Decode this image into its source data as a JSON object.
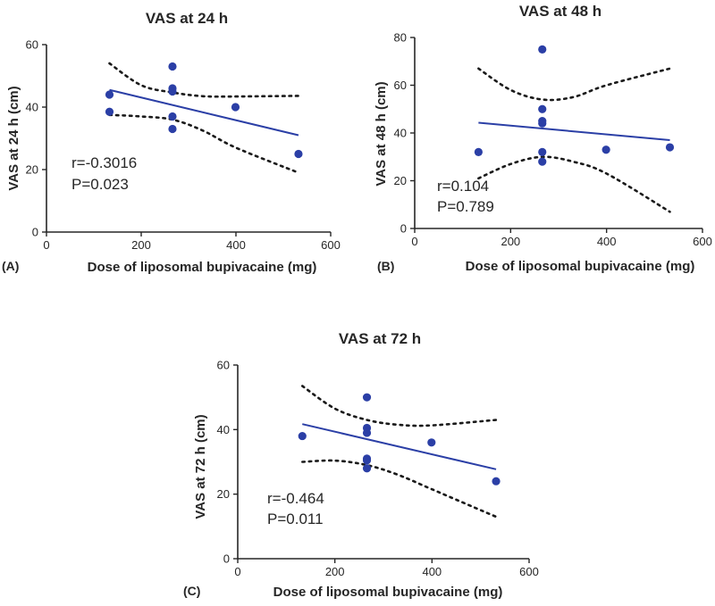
{
  "colors": {
    "point": "#2b3fa6",
    "fit_line": "#2b3fa6",
    "axis": "#262626",
    "ci": "#1a1a1a"
  },
  "chart_data": [
    {
      "type": "scatter",
      "panel_label": "(A)",
      "title": "VAS at 24 h",
      "xlabel": "Dose of liposomal bupivacaine (mg)",
      "ylabel": "VAS at 24 h (cm)",
      "xlim": [
        0,
        600
      ],
      "ylim": [
        0,
        60
      ],
      "xticks": [
        0,
        200,
        400,
        600
      ],
      "yticks": [
        0,
        20,
        40,
        60
      ],
      "points": [
        [
          133,
          44
        ],
        [
          133,
          38.5
        ],
        [
          266,
          53
        ],
        [
          266,
          46
        ],
        [
          266,
          45
        ],
        [
          266,
          37
        ],
        [
          266,
          33
        ],
        [
          399,
          40
        ],
        [
          532,
          25
        ]
      ],
      "fit": {
        "x": [
          133,
          532
        ],
        "y": [
          45.5,
          31
        ]
      },
      "ci_upper": {
        "x": [
          133,
          200,
          266,
          330,
          400,
          532
        ],
        "y": [
          54,
          47,
          44.7,
          43.5,
          43.4,
          43.6
        ]
      },
      "ci_lower": {
        "x": [
          133,
          200,
          266,
          330,
          400,
          532
        ],
        "y": [
          37.5,
          37,
          36,
          32.5,
          27,
          19
        ]
      },
      "annotations": [
        "r=-0.3016",
        "P=0.023"
      ]
    },
    {
      "type": "scatter",
      "panel_label": "(B)",
      "title": "VAS at 48 h",
      "xlabel": "Dose of liposomal bupivacaine (mg)",
      "ylabel": "VAS at 48 h (cm)",
      "xlim": [
        0,
        600
      ],
      "ylim": [
        0,
        80
      ],
      "xticks": [
        0,
        200,
        400,
        600
      ],
      "yticks": [
        0,
        20,
        40,
        60,
        80
      ],
      "points": [
        [
          133,
          32
        ],
        [
          266,
          75
        ],
        [
          266,
          50
        ],
        [
          266,
          45
        ],
        [
          266,
          44
        ],
        [
          266,
          32
        ],
        [
          266,
          28
        ],
        [
          399,
          33
        ],
        [
          532,
          34
        ]
      ],
      "fit": {
        "x": [
          133,
          532
        ],
        "y": [
          44.3,
          37
        ]
      },
      "ci_upper": {
        "x": [
          133,
          200,
          266,
          330,
          400,
          532
        ],
        "y": [
          67,
          58,
          54,
          55,
          60,
          67
        ]
      },
      "ci_lower": {
        "x": [
          133,
          200,
          266,
          330,
          400,
          532
        ],
        "y": [
          21,
          27,
          30,
          28,
          23,
          7
        ]
      },
      "annotations": [
        "r=0.104",
        "P=0.789"
      ]
    },
    {
      "type": "scatter",
      "panel_label": "(C)",
      "title": "VAS at 72 h",
      "xlabel": "Dose of liposomal bupivacaine (mg)",
      "ylabel": "VAS at 72 h (cm)",
      "xlim": [
        0,
        600
      ],
      "ylim": [
        0,
        60
      ],
      "xticks": [
        0,
        200,
        400,
        600
      ],
      "yticks": [
        0,
        20,
        40,
        60
      ],
      "points": [
        [
          133,
          38
        ],
        [
          266,
          50
        ],
        [
          266,
          40.5
        ],
        [
          266,
          39
        ],
        [
          266,
          31
        ],
        [
          266,
          30.5
        ],
        [
          266,
          28
        ],
        [
          399,
          36
        ],
        [
          532,
          24
        ]
      ],
      "fit": {
        "x": [
          133,
          532
        ],
        "y": [
          41.7,
          27.7
        ]
      },
      "ci_upper": {
        "x": [
          133,
          200,
          266,
          330,
          400,
          532
        ],
        "y": [
          53.5,
          46.5,
          43,
          41.5,
          41.3,
          43
        ]
      },
      "ci_lower": {
        "x": [
          133,
          200,
          266,
          330,
          400,
          532
        ],
        "y": [
          30,
          30.4,
          29,
          26,
          21.5,
          13
        ]
      },
      "annotations": [
        "r=-0.464",
        "P=0.011"
      ]
    }
  ]
}
